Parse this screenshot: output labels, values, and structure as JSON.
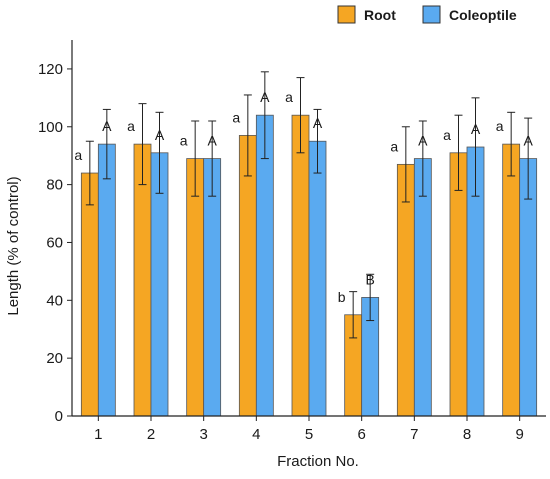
{
  "chart_data": {
    "type": "bar",
    "title": "",
    "xlabel": "Fraction No.",
    "ylabel": "Length  (% of control)",
    "ylim": [
      0,
      130
    ],
    "yticks": [
      0,
      20,
      40,
      60,
      80,
      100,
      120
    ],
    "categories": [
      "1",
      "2",
      "3",
      "4",
      "5",
      "6",
      "7",
      "8",
      "9"
    ],
    "grid": false,
    "legend_position": "top-right",
    "series": [
      {
        "name": "Root",
        "color": "#f5a623",
        "values": [
          84,
          94,
          89,
          97,
          104,
          35,
          87,
          91,
          94
        ],
        "errors": [
          11,
          14,
          13,
          14,
          13,
          8,
          13,
          13,
          11
        ],
        "labels": [
          "a",
          "a",
          "a",
          "a",
          "a",
          "b",
          "a",
          "a",
          "a"
        ]
      },
      {
        "name": "Coleoptile",
        "color": "#5aaaf0",
        "values": [
          94,
          91,
          89,
          104,
          95,
          41,
          89,
          93,
          89
        ],
        "errors": [
          12,
          14,
          13,
          15,
          11,
          8,
          13,
          17,
          14
        ],
        "labels": [
          "A",
          "A",
          "A",
          "A",
          "A",
          "B",
          "A",
          "A",
          "A"
        ]
      }
    ]
  }
}
